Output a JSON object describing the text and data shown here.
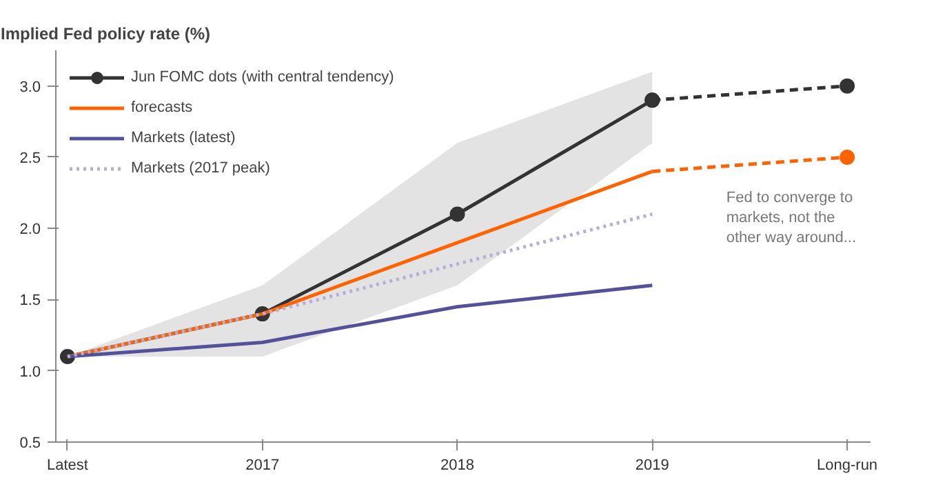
{
  "chart_data": {
    "type": "line",
    "title": "Implied Fed policy rate (%)",
    "categories": [
      "Latest",
      "2017",
      "2018",
      "2019",
      "Long-run"
    ],
    "ylim": [
      0.5,
      3.25
    ],
    "yticks": [
      {
        "value": 0.5,
        "label": "0.5"
      },
      {
        "value": 1,
        "label": "1.0"
      },
      {
        "value": 1.5,
        "label": "1.5"
      },
      {
        "value": 2,
        "label": "2.0"
      },
      {
        "value": 2.5,
        "label": "2.5"
      },
      {
        "value": 3,
        "label": "3.0"
      }
    ],
    "grid": false,
    "legend": "top left",
    "series": [
      {
        "name": "Jun FOMC dots (with central tendency)",
        "color": "#333333",
        "marker": "circle",
        "line_style": "solid",
        "values": [
          1.1,
          1.4,
          2.1,
          2.9,
          null
        ],
        "lower": [
          1.1,
          1.1,
          1.6,
          2.6,
          null
        ],
        "upper": [
          1.1,
          1.6,
          2.6,
          3.1,
          null
        ]
      },
      {
        "color": "#333333",
        "marker": "circle",
        "line_style": "dashed",
        "values": [
          null,
          null,
          null,
          2.9,
          3.0
        ]
      },
      {
        "name": "forecasts",
        "color": "#ff6200",
        "marker": "none",
        "line_style": "solid",
        "values": [
          1.1,
          1.4,
          1.9,
          2.4,
          null
        ]
      },
      {
        "color": "#ff6200",
        "marker": "none",
        "line_style": "dashed",
        "values": [
          null,
          null,
          null,
          2.4,
          2.5
        ]
      },
      {
        "type": "scatter",
        "color": "#ff6200",
        "values": [
          null,
          null,
          null,
          null,
          2.5
        ]
      },
      {
        "name": "Markets (latest)",
        "color": "#525199",
        "marker": "none",
        "line_style": "solid",
        "values": [
          1.1,
          1.2,
          1.45,
          1.6,
          null
        ]
      },
      {
        "name": "Markets (2017 peak)",
        "color": "#b5aed6",
        "marker": "none",
        "line_style": "dotted",
        "values": [
          1.1,
          1.4,
          1.75,
          2.1,
          null
        ]
      }
    ],
    "annotations": [
      "Fed to converge to markets, not the other way around..."
    ]
  }
}
